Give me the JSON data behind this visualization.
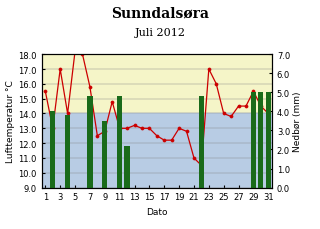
{
  "title": "Sunndalsøra",
  "subtitle": "Juli 2012",
  "xlabel": "Dato",
  "ylabel_left": "Lufttemperatur °C",
  "ylabel_right": "Nedbør (mm)",
  "days": [
    1,
    2,
    3,
    4,
    5,
    6,
    7,
    8,
    9,
    10,
    11,
    12,
    13,
    14,
    15,
    16,
    17,
    18,
    19,
    20,
    21,
    22,
    23,
    24,
    25,
    26,
    27,
    28,
    29,
    30,
    31
  ],
  "temperature": [
    15.5,
    13.0,
    17.0,
    14.0,
    18.2,
    18.0,
    15.8,
    12.5,
    12.8,
    14.8,
    13.0,
    13.0,
    13.2,
    13.0,
    13.0,
    12.5,
    12.2,
    12.2,
    13.0,
    12.8,
    11.0,
    10.5,
    17.0,
    16.0,
    14.0,
    13.8,
    14.5,
    14.5,
    15.5,
    14.5,
    14.0
  ],
  "precipitation": [
    0.0,
    4.0,
    0.0,
    3.8,
    0.0,
    0.0,
    4.8,
    0.0,
    3.5,
    0.0,
    4.8,
    2.2,
    0.0,
    0.0,
    0.0,
    0.0,
    0.0,
    0.0,
    0.0,
    0.0,
    0.0,
    4.8,
    0.0,
    0.0,
    0.0,
    0.0,
    0.0,
    0.0,
    5.0,
    5.0,
    5.0
  ],
  "temp_ylim": [
    9.0,
    18.0
  ],
  "precip_ylim": [
    0.0,
    7.0
  ],
  "bar_color": "#1a6b1a",
  "line_color": "#cc0000",
  "marker_color": "#cc0000",
  "bg_yellow": "#f5f5c8",
  "bg_blue": "#b8cce4",
  "bg_boundary_temp": 14.0,
  "xticks": [
    1,
    3,
    5,
    7,
    9,
    11,
    13,
    15,
    17,
    19,
    21,
    23,
    25,
    27,
    29,
    31
  ],
  "temp_yticks": [
    9.0,
    10.0,
    11.0,
    12.0,
    13.0,
    14.0,
    15.0,
    16.0,
    17.0,
    18.0
  ],
  "precip_yticks": [
    0.0,
    1.0,
    2.0,
    3.0,
    4.0,
    5.0,
    6.0,
    7.0
  ],
  "title_fontsize": 10,
  "subtitle_fontsize": 8,
  "axis_label_fontsize": 6.5,
  "tick_fontsize": 6
}
